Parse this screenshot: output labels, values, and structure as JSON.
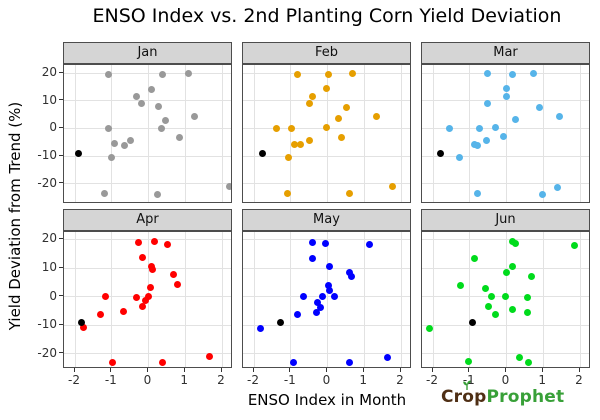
{
  "title": "ENSO Index vs. 2nd Planting Corn Yield Deviation",
  "axes": {
    "x_title": "ENSO Index in Month",
    "y_title": "Yield Deviation from Trend (%)",
    "x_ticks": [
      -2,
      -1,
      0,
      1,
      2
    ],
    "y_ticks": [
      20,
      10,
      0,
      -10,
      -20
    ]
  },
  "logo": {
    "brand_part1": "Crop",
    "brand_part2": "Prophet",
    "brown": "#4f2f15",
    "green": "#38a038"
  },
  "chart_data": {
    "type": "scatter",
    "facet_by": "month",
    "grid": "on",
    "legend": "none",
    "x_range": [
      -2.3,
      2.3
    ],
    "y_range_row1": [
      -27.4,
      23.0
    ],
    "y_range_row2": [
      -25.3,
      22.6
    ],
    "highlight_color": "#000000",
    "facets": [
      {
        "label": "Jan",
        "color": "#999999",
        "points": [
          [
            -1.1,
            19.5
          ],
          [
            0.39,
            19.5
          ],
          [
            1.08,
            19.9
          ],
          [
            0.09,
            14.3
          ],
          [
            -0.32,
            11.6
          ],
          [
            -0.2,
            9.2
          ],
          [
            0.28,
            8.0
          ],
          [
            1.26,
            4.2
          ],
          [
            0.46,
            3.0
          ],
          [
            -1.08,
            0.0
          ],
          [
            0.34,
            0.0
          ],
          [
            0.84,
            -3.3
          ],
          [
            -0.48,
            -4.2
          ],
          [
            -0.94,
            -5.6
          ],
          [
            -0.66,
            -6.2
          ],
          [
            -1.01,
            -10.7
          ],
          [
            -1.21,
            -23.4
          ],
          [
            0.23,
            -23.8
          ],
          [
            2.2,
            -21.2
          ]
        ],
        "highlight_point": [
          -1.9,
          -8.9
        ]
      },
      {
        "label": "Feb",
        "color": "#E69F00",
        "points": [
          [
            -0.82,
            19.6
          ],
          [
            0.03,
            19.6
          ],
          [
            0.67,
            19.9
          ],
          [
            -0.03,
            14.4
          ],
          [
            -0.4,
            11.6
          ],
          [
            -0.48,
            9.2
          ],
          [
            0.52,
            7.6
          ],
          [
            1.33,
            4.5
          ],
          [
            0.29,
            3.5
          ],
          [
            -0.03,
            0.5
          ],
          [
            -1.39,
            0.0
          ],
          [
            -0.97,
            0.0
          ],
          [
            0.37,
            -3.1
          ],
          [
            -0.5,
            -4.2
          ],
          [
            -0.91,
            -5.9
          ],
          [
            -0.73,
            -5.9
          ],
          [
            -1.07,
            -10.6
          ],
          [
            -1.08,
            -23.4
          ],
          [
            0.59,
            -23.7
          ],
          [
            1.76,
            -21.1
          ]
        ],
        "highlight_point": [
          -1.78,
          -8.9
        ]
      },
      {
        "label": "Mar",
        "color": "#56B4E9",
        "points": [
          [
            -0.52,
            19.9
          ],
          [
            0.17,
            19.6
          ],
          [
            0.72,
            19.9
          ],
          [
            -0.01,
            14.4
          ],
          [
            0.01,
            11.7
          ],
          [
            -0.52,
            9.2
          ],
          [
            0.89,
            7.7
          ],
          [
            1.45,
            4.5
          ],
          [
            0.23,
            3.3
          ],
          [
            -1.54,
            0.0
          ],
          [
            -0.74,
            0.0
          ],
          [
            -0.29,
            0.5
          ],
          [
            -0.08,
            -3.0
          ],
          [
            -0.54,
            -4.2
          ],
          [
            -0.88,
            -5.7
          ],
          [
            -0.8,
            -6.1
          ],
          [
            -1.29,
            -10.7
          ],
          [
            -0.78,
            -23.6
          ],
          [
            0.97,
            -23.8
          ],
          [
            1.4,
            -21.3
          ]
        ],
        "highlight_point": [
          -1.8,
          -8.9
        ]
      },
      {
        "label": "Apr",
        "color": "#FF0000",
        "points": [
          [
            -0.28,
            18.9
          ],
          [
            0.17,
            19.3
          ],
          [
            0.52,
            18.4
          ],
          [
            -0.17,
            13.6
          ],
          [
            0.07,
            10.7
          ],
          [
            0.1,
            9.4
          ],
          [
            0.69,
            7.6
          ],
          [
            0.78,
            4.2
          ],
          [
            0.04,
            3.2
          ],
          [
            -1.17,
            0.0
          ],
          [
            -0.33,
            -0.2
          ],
          [
            0.01,
            0.0
          ],
          [
            -0.07,
            -1.2
          ],
          [
            -0.17,
            -3.3
          ],
          [
            -0.68,
            -5.1
          ],
          [
            -1.3,
            -6.2
          ],
          [
            -1.78,
            -10.9
          ],
          [
            -0.97,
            -22.9
          ],
          [
            0.38,
            -23.0
          ],
          [
            1.65,
            -20.9
          ]
        ],
        "highlight_point": [
          -1.83,
          -9.1
        ]
      },
      {
        "label": "May",
        "color": "#0000FF",
        "points": [
          [
            -0.4,
            18.8
          ],
          [
            -0.05,
            18.6
          ],
          [
            1.15,
            18.2
          ],
          [
            -0.41,
            13.5
          ],
          [
            0.04,
            10.6
          ],
          [
            0.6,
            8.3
          ],
          [
            0.66,
            7.0
          ],
          [
            0.02,
            4.0
          ],
          [
            0.05,
            2.3
          ],
          [
            -0.15,
            0.2
          ],
          [
            0.2,
            -0.1
          ],
          [
            -0.65,
            0.0
          ],
          [
            -0.26,
            -2.1
          ],
          [
            -0.2,
            -3.7
          ],
          [
            -0.3,
            -5.7
          ],
          [
            -0.81,
            -6.2
          ],
          [
            -1.83,
            -11.0
          ],
          [
            -0.93,
            -22.9
          ],
          [
            0.61,
            -23.0
          ],
          [
            1.64,
            -21.2
          ]
        ],
        "highlight_point": [
          -1.29,
          -9.1
        ]
      },
      {
        "label": "Jun",
        "color": "#00DB1C",
        "points": [
          [
            0.15,
            19.4
          ],
          [
            0.25,
            18.5
          ],
          [
            1.84,
            18.0
          ],
          [
            -0.88,
            13.5
          ],
          [
            0.17,
            10.6
          ],
          [
            0.0,
            8.3
          ],
          [
            0.67,
            7.0
          ],
          [
            -1.25,
            3.9
          ],
          [
            -0.57,
            3.0
          ],
          [
            -0.02,
            0.1
          ],
          [
            -0.42,
            0.0
          ],
          [
            0.58,
            -0.4
          ],
          [
            -0.5,
            -3.3
          ],
          [
            0.17,
            -4.6
          ],
          [
            0.58,
            -5.7
          ],
          [
            -0.3,
            -6.1
          ],
          [
            -2.11,
            -11.0
          ],
          [
            -1.04,
            -22.8
          ],
          [
            0.34,
            -21.2
          ],
          [
            0.6,
            -23.0
          ]
        ],
        "highlight_point": [
          -0.94,
          -9.1
        ]
      }
    ]
  }
}
